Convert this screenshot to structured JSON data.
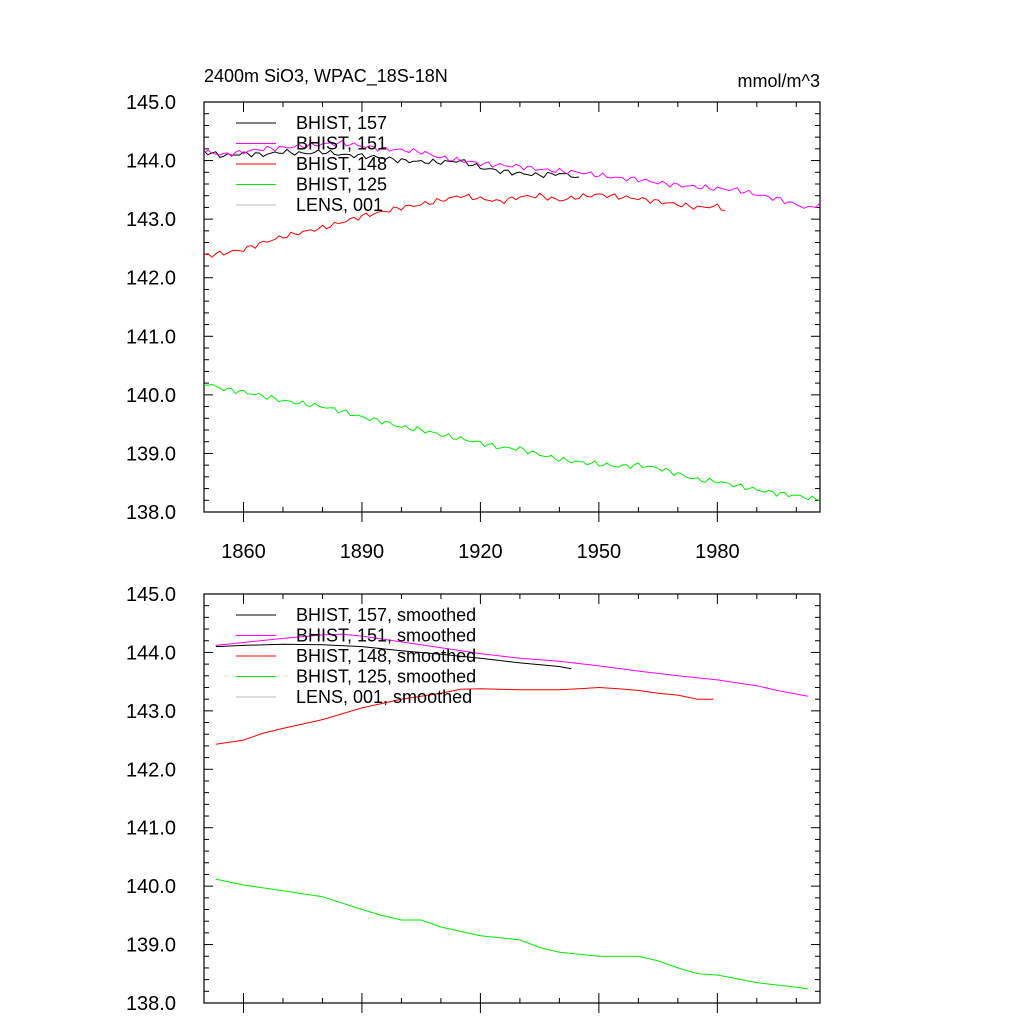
{
  "title": "2400m SiO3, WPAC_18S-18N",
  "units": "mmol/m^3",
  "x_ticks": [
    1860,
    1890,
    1920,
    1950,
    1980
  ],
  "y_ticks": [
    "145.0",
    "144.0",
    "143.0",
    "142.0",
    "141.0",
    "140.0",
    "139.0",
    "138.0"
  ],
  "chart_data": [
    {
      "type": "line",
      "title": "2400m SiO3, WPAC_18S-18N",
      "units": "mmol/m^3",
      "xlim": [
        1850,
        2006
      ],
      "ylim": [
        138.0,
        145.0
      ],
      "grid": false,
      "legend": "top-left",
      "x_ticks": [
        1860,
        1890,
        1920,
        1950,
        1980
      ],
      "series": [
        {
          "name": "BHIST, 157",
          "color": "#000000",
          "points": [
            [
              1850,
              144.15
            ],
            [
              1855,
              144.08
            ],
            [
              1860,
              144.12
            ],
            [
              1865,
              144.1
            ],
            [
              1870,
              144.15
            ],
            [
              1875,
              144.12
            ],
            [
              1880,
              144.15
            ],
            [
              1885,
              144.1
            ],
            [
              1890,
              144.08
            ],
            [
              1895,
              144.05
            ],
            [
              1900,
              144.0
            ],
            [
              1905,
              143.98
            ],
            [
              1910,
              143.97
            ],
            [
              1915,
              144.0
            ],
            [
              1920,
              143.88
            ],
            [
              1925,
              143.82
            ],
            [
              1930,
              143.78
            ],
            [
              1935,
              143.75
            ],
            [
              1940,
              143.78
            ],
            [
              1945,
              143.72
            ]
          ]
        },
        {
          "name": "BHIST, 151",
          "color": "#ff00ff",
          "points": [
            [
              1850,
              144.15
            ],
            [
              1855,
              144.1
            ],
            [
              1860,
              144.15
            ],
            [
              1865,
              144.2
            ],
            [
              1870,
              144.22
            ],
            [
              1875,
              144.25
            ],
            [
              1880,
              144.28
            ],
            [
              1885,
              144.3
            ],
            [
              1890,
              144.25
            ],
            [
              1895,
              144.2
            ],
            [
              1900,
              144.18
            ],
            [
              1905,
              144.15
            ],
            [
              1910,
              144.05
            ],
            [
              1915,
              144.0
            ],
            [
              1920,
              143.95
            ],
            [
              1925,
              143.92
            ],
            [
              1930,
              143.9
            ],
            [
              1935,
              143.85
            ],
            [
              1940,
              143.82
            ],
            [
              1945,
              143.8
            ],
            [
              1950,
              143.75
            ],
            [
              1955,
              143.7
            ],
            [
              1960,
              143.68
            ],
            [
              1965,
              143.62
            ],
            [
              1970,
              143.58
            ],
            [
              1975,
              143.55
            ],
            [
              1980,
              143.52
            ],
            [
              1985,
              143.5
            ],
            [
              1990,
              143.42
            ],
            [
              1995,
              143.35
            ],
            [
              2000,
              143.25
            ],
            [
              2003,
              143.18
            ],
            [
              2006,
              143.28
            ]
          ]
        },
        {
          "name": "BHIST, 148",
          "color": "#ff0000",
          "points": [
            [
              1850,
              142.38
            ],
            [
              1855,
              142.42
            ],
            [
              1860,
              142.48
            ],
            [
              1865,
              142.6
            ],
            [
              1870,
              142.7
            ],
            [
              1875,
              142.78
            ],
            [
              1880,
              142.85
            ],
            [
              1885,
              142.95
            ],
            [
              1890,
              143.05
            ],
            [
              1895,
              143.12
            ],
            [
              1900,
              143.2
            ],
            [
              1905,
              143.25
            ],
            [
              1910,
              143.32
            ],
            [
              1915,
              143.4
            ],
            [
              1920,
              143.35
            ],
            [
              1925,
              143.3
            ],
            [
              1930,
              143.38
            ],
            [
              1935,
              143.4
            ],
            [
              1940,
              143.32
            ],
            [
              1945,
              143.38
            ],
            [
              1950,
              143.42
            ],
            [
              1955,
              143.38
            ],
            [
              1960,
              143.35
            ],
            [
              1965,
              143.3
            ],
            [
              1970,
              143.25
            ],
            [
              1975,
              143.2
            ],
            [
              1980,
              143.22
            ],
            [
              1982,
              143.15
            ]
          ]
        },
        {
          "name": "BHIST, 125",
          "color": "#00ee00",
          "points": [
            [
              1850,
              140.2
            ],
            [
              1855,
              140.1
            ],
            [
              1860,
              140.05
            ],
            [
              1865,
              139.98
            ],
            [
              1870,
              139.9
            ],
            [
              1875,
              139.85
            ],
            [
              1880,
              139.8
            ],
            [
              1885,
              139.72
            ],
            [
              1890,
              139.62
            ],
            [
              1895,
              139.55
            ],
            [
              1900,
              139.45
            ],
            [
              1905,
              139.4
            ],
            [
              1910,
              139.32
            ],
            [
              1915,
              139.25
            ],
            [
              1920,
              139.18
            ],
            [
              1925,
              139.1
            ],
            [
              1930,
              139.08
            ],
            [
              1935,
              138.98
            ],
            [
              1940,
              138.9
            ],
            [
              1945,
              138.85
            ],
            [
              1950,
              138.82
            ],
            [
              1955,
              138.78
            ],
            [
              1960,
              138.8
            ],
            [
              1965,
              138.75
            ],
            [
              1970,
              138.65
            ],
            [
              1975,
              138.55
            ],
            [
              1980,
              138.52
            ],
            [
              1985,
              138.45
            ],
            [
              1990,
              138.38
            ],
            [
              1995,
              138.32
            ],
            [
              2000,
              138.28
            ],
            [
              2006,
              138.2
            ]
          ]
        },
        {
          "name": "LENS, 001",
          "color": "#bbbbbb",
          "points": []
        }
      ]
    },
    {
      "type": "line",
      "xlim": [
        1850,
        2006
      ],
      "ylim": [
        138.0,
        145.0
      ],
      "grid": false,
      "legend": "top-left",
      "series": [
        {
          "name": "BHIST, 157, smoothed",
          "color": "#000000",
          "points": [
            [
              1853,
              144.1
            ],
            [
              1860,
              144.12
            ],
            [
              1870,
              144.14
            ],
            [
              1880,
              144.13
            ],
            [
              1890,
              144.1
            ],
            [
              1900,
              144.03
            ],
            [
              1910,
              143.97
            ],
            [
              1920,
              143.9
            ],
            [
              1930,
              143.82
            ],
            [
              1940,
              143.76
            ],
            [
              1943,
              143.72
            ]
          ]
        },
        {
          "name": "BHIST, 151, smoothed",
          "color": "#ff00ff",
          "points": [
            [
              1853,
              144.12
            ],
            [
              1860,
              144.17
            ],
            [
              1870,
              144.24
            ],
            [
              1880,
              144.3
            ],
            [
              1885,
              144.31
            ],
            [
              1890,
              144.28
            ],
            [
              1900,
              144.18
            ],
            [
              1910,
              144.08
            ],
            [
              1920,
              143.98
            ],
            [
              1930,
              143.9
            ],
            [
              1940,
              143.85
            ],
            [
              1950,
              143.77
            ],
            [
              1960,
              143.68
            ],
            [
              1970,
              143.6
            ],
            [
              1980,
              143.53
            ],
            [
              1990,
              143.43
            ],
            [
              1995,
              143.35
            ],
            [
              2003,
              143.25
            ]
          ]
        },
        {
          "name": "BHIST, 148, smoothed",
          "color": "#ff0000",
          "points": [
            [
              1853,
              142.43
            ],
            [
              1860,
              142.5
            ],
            [
              1865,
              142.62
            ],
            [
              1870,
              142.7
            ],
            [
              1880,
              142.85
            ],
            [
              1890,
              143.05
            ],
            [
              1900,
              143.2
            ],
            [
              1910,
              143.3
            ],
            [
              1915,
              143.37
            ],
            [
              1920,
              143.38
            ],
            [
              1930,
              143.36
            ],
            [
              1940,
              143.36
            ],
            [
              1945,
              143.38
            ],
            [
              1950,
              143.4
            ],
            [
              1955,
              143.38
            ],
            [
              1960,
              143.35
            ],
            [
              1965,
              143.3
            ],
            [
              1970,
              143.27
            ],
            [
              1975,
              143.2
            ],
            [
              1979,
              143.2
            ]
          ]
        },
        {
          "name": "BHIST, 125, smoothed",
          "color": "#00ee00",
          "points": [
            [
              1853,
              140.12
            ],
            [
              1860,
              140.02
            ],
            [
              1870,
              139.92
            ],
            [
              1880,
              139.82
            ],
            [
              1890,
              139.6
            ],
            [
              1895,
              139.5
            ],
            [
              1900,
              139.42
            ],
            [
              1905,
              139.42
            ],
            [
              1910,
              139.3
            ],
            [
              1920,
              139.15
            ],
            [
              1930,
              139.08
            ],
            [
              1935,
              138.95
            ],
            [
              1940,
              138.87
            ],
            [
              1950,
              138.8
            ],
            [
              1960,
              138.8
            ],
            [
              1965,
              138.72
            ],
            [
              1970,
              138.6
            ],
            [
              1975,
              138.5
            ],
            [
              1980,
              138.48
            ],
            [
              1990,
              138.35
            ],
            [
              2000,
              138.27
            ],
            [
              2003,
              138.24
            ]
          ]
        },
        {
          "name": "LENS, 001, smoothed",
          "color": "#bbbbbb",
          "points": []
        }
      ]
    }
  ]
}
